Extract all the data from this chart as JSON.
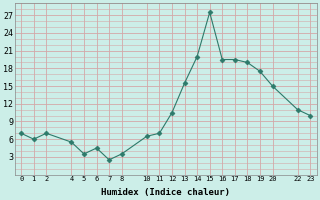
{
  "x": [
    0,
    1,
    2,
    4,
    5,
    6,
    7,
    8,
    10,
    11,
    12,
    13,
    14,
    15,
    16,
    17,
    18,
    19,
    20,
    22,
    23
  ],
  "y": [
    7,
    6,
    7,
    5.5,
    3.5,
    4.5,
    2.5,
    3.5,
    6.5,
    7,
    10.5,
    15.5,
    20,
    27.5,
    19.5,
    19.5,
    19,
    17.5,
    15,
    11,
    10
  ],
  "line_color": "#2d7a6a",
  "marker": "D",
  "marker_size": 2.5,
  "xlabel": "Humidex (Indice chaleur)",
  "xlim": [
    -0.5,
    23.5
  ],
  "ylim": [
    0,
    29
  ],
  "yticks": [
    3,
    6,
    9,
    12,
    15,
    18,
    21,
    24,
    27
  ],
  "xticks": [
    0,
    1,
    2,
    4,
    5,
    6,
    7,
    8,
    10,
    11,
    12,
    13,
    14,
    15,
    16,
    17,
    18,
    19,
    20,
    22,
    23
  ],
  "xtick_labels": [
    "0",
    "1",
    "2",
    "4",
    "5",
    "6",
    "7",
    "8",
    "10",
    "11",
    "12",
    "13",
    "14",
    "15",
    "16",
    "17",
    "18",
    "19",
    "20",
    "22",
    "23"
  ],
  "bg_color": "#cceee8",
  "grid_color": "#d4a8a8",
  "font_family": "monospace"
}
